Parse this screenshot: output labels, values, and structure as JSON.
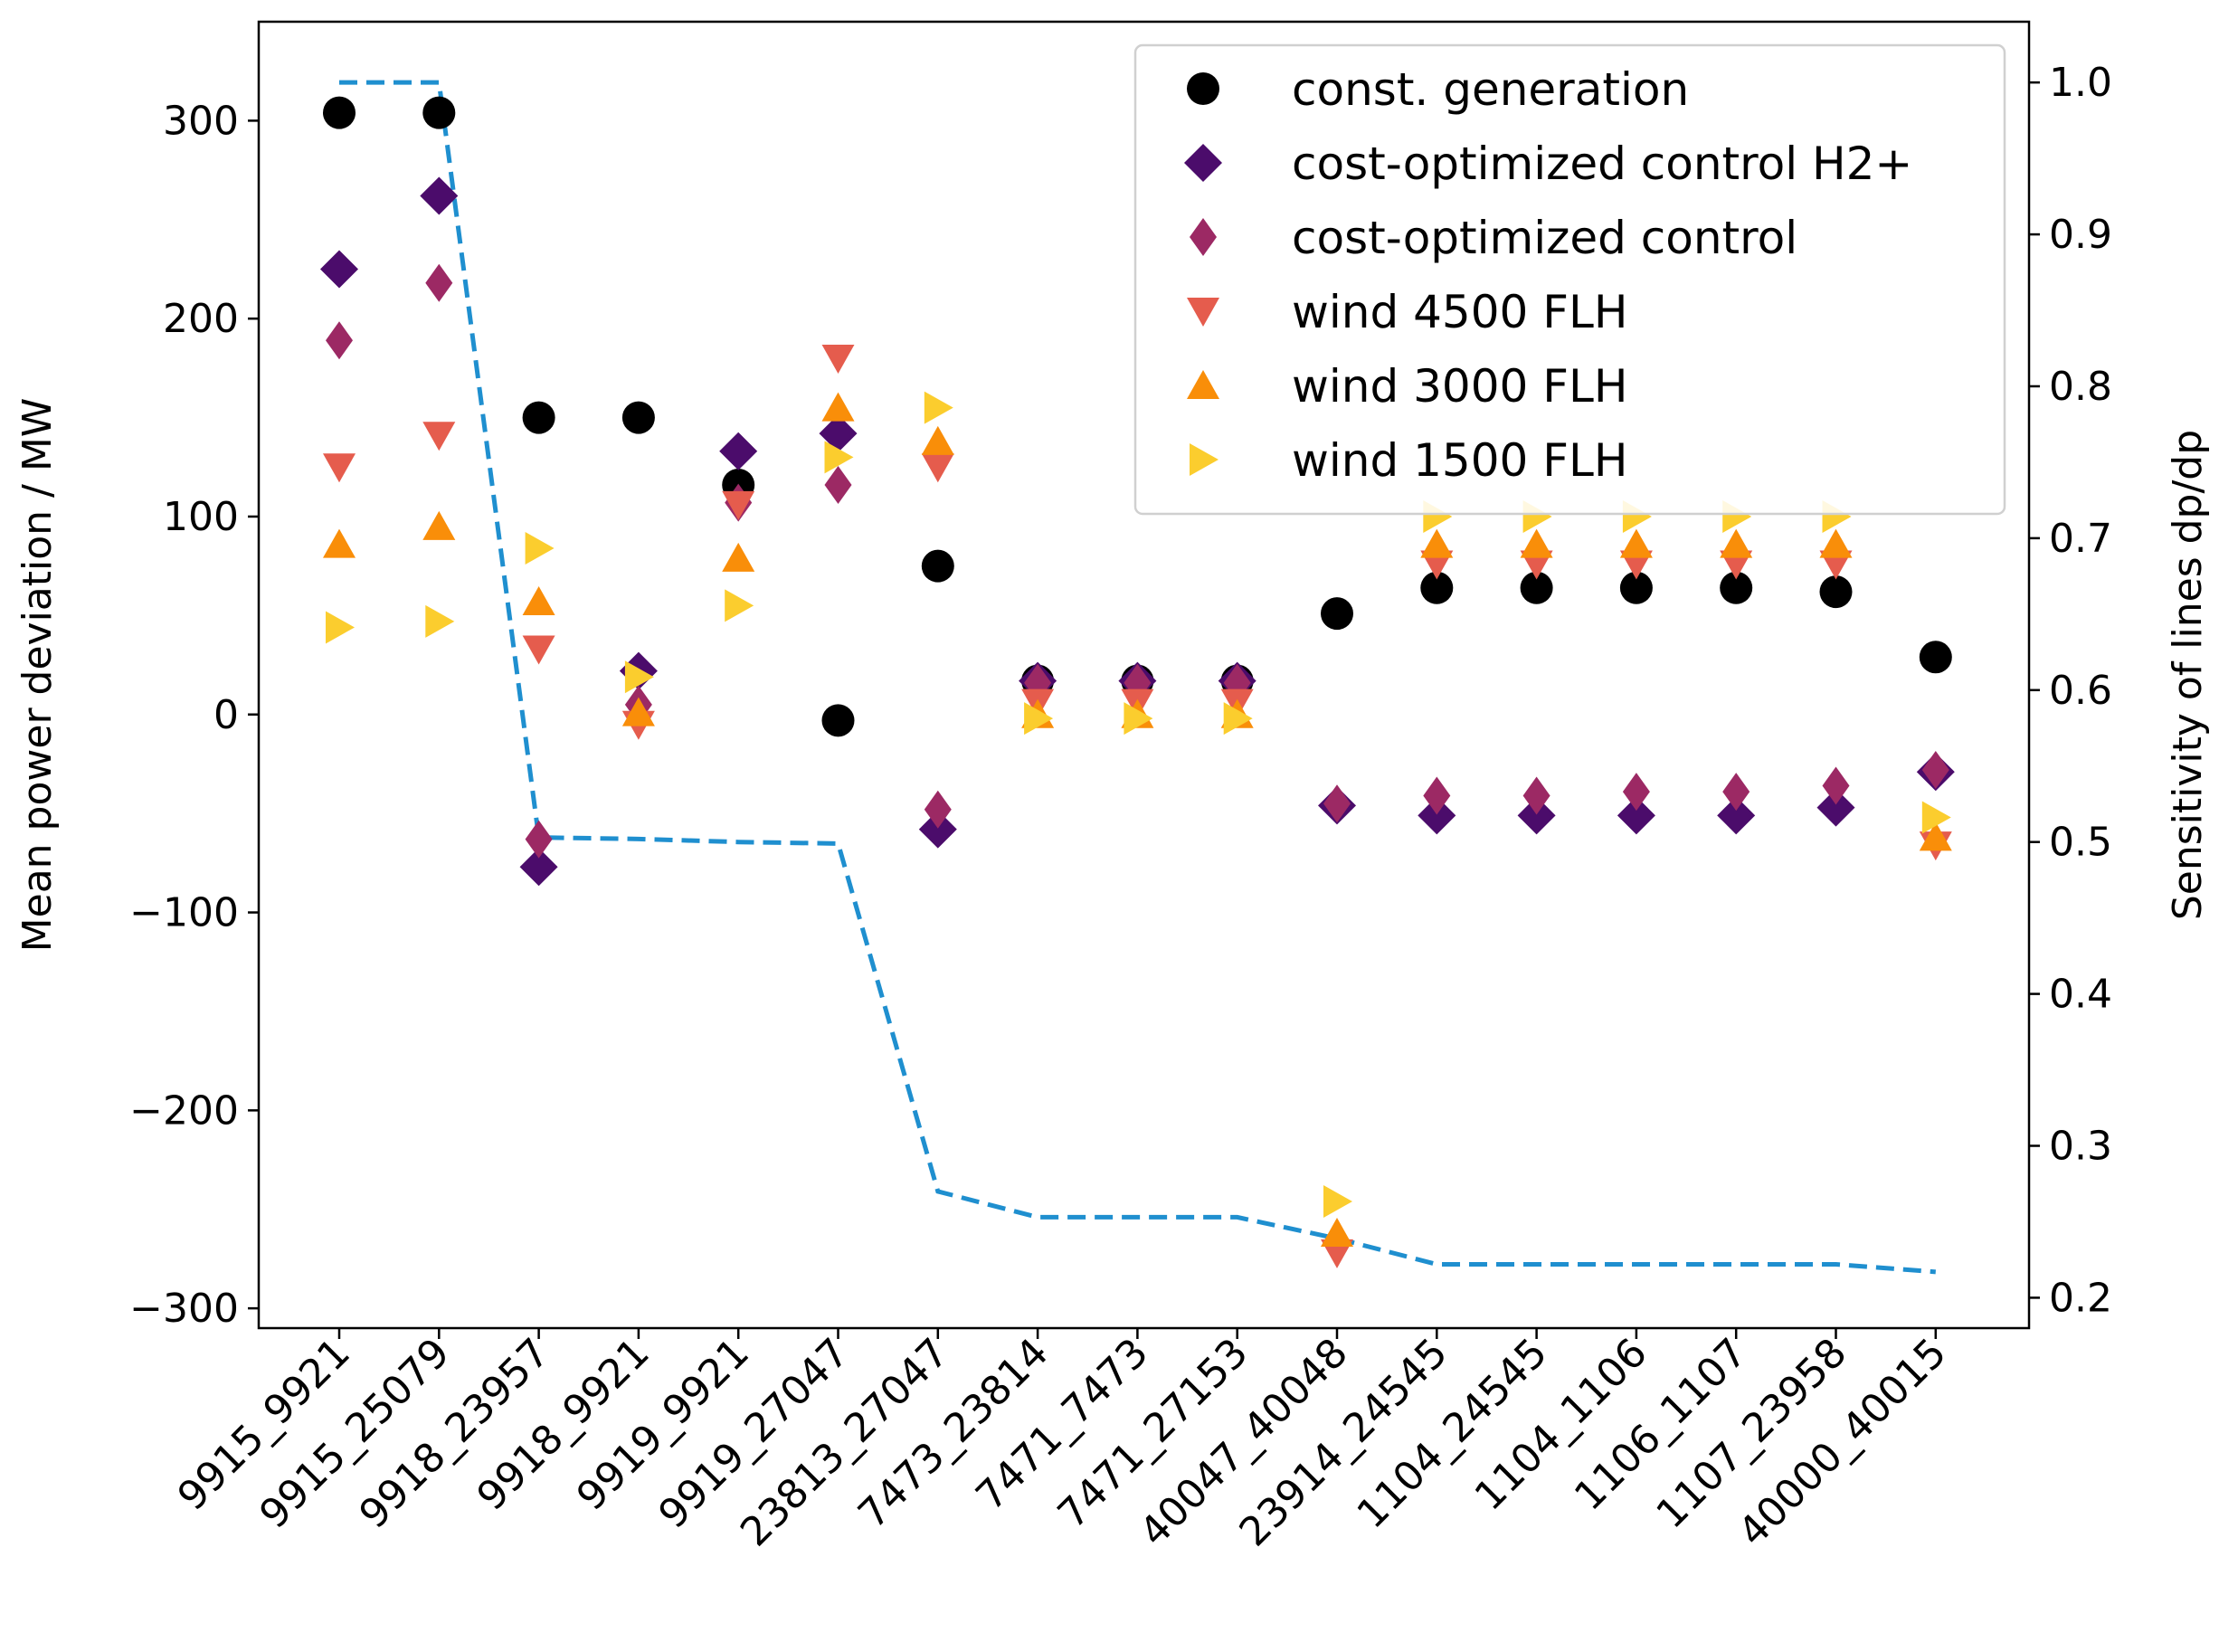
{
  "chart_data": {
    "type": "scatter",
    "title": "",
    "xlabel": "",
    "ylabel": "Mean power deviation / MW",
    "y2label": "Sensitivity of lines dp/dp",
    "ylim": [
      -310,
      350
    ],
    "y2lim": [
      0.18,
      1.04
    ],
    "yticks": [
      300,
      200,
      100,
      0,
      -100,
      -200,
      -300
    ],
    "ytick_labels": [
      "300",
      "200",
      "100",
      "0",
      "−100",
      "−200",
      "−300"
    ],
    "y2ticks": [
      1.0,
      0.9,
      0.8,
      0.7,
      0.6,
      0.5,
      0.4,
      0.3,
      0.2
    ],
    "y2tick_labels": [
      "1.0",
      "0.9",
      "0.8",
      "0.7",
      "0.6",
      "0.5",
      "0.4",
      "0.3",
      "0.2"
    ],
    "categories": [
      "9915_9921",
      "9915_25079",
      "9918_23957",
      "9918_9921",
      "9919_9921",
      "9919_27047",
      "23813_27047",
      "7473_23814",
      "7471_7473",
      "7471_27153",
      "40047_40048",
      "23914_24545",
      "1104_24545",
      "1104_1106",
      "1106_1107",
      "1107_23958",
      "40000_40015"
    ],
    "legend_position": "top-right",
    "series": [
      {
        "name": "const. generation",
        "marker": "circle",
        "color": "#000000",
        "values": [
          304,
          304,
          150,
          150,
          116,
          -3,
          75,
          17,
          17,
          17,
          51,
          64,
          64,
          64,
          64,
          62,
          29
        ]
      },
      {
        "name": "cost-optimized control H2+",
        "marker": "diamond",
        "color": "#4b0c6b",
        "values": [
          225,
          262,
          -77,
          22,
          133,
          142,
          -58,
          17,
          17,
          17,
          -46,
          -51,
          -51,
          -51,
          -51,
          -47,
          -29
        ]
      },
      {
        "name": "cost-optimized control",
        "marker": "thin_diamond",
        "color": "#9c2964",
        "values": [
          189,
          218,
          -63,
          5,
          107,
          116,
          -48,
          16,
          16,
          16,
          -45,
          -41,
          -41,
          -39,
          -39,
          -36,
          -28
        ]
      },
      {
        "name": "wind 4500 FLH",
        "marker": "triangle_down",
        "color": "#e55c4d",
        "values": [
          125,
          141,
          33,
          -5,
          106,
          180,
          125,
          6,
          6,
          6,
          -272,
          76,
          76,
          76,
          76,
          76,
          -66
        ]
      },
      {
        "name": "wind 3000 FLH",
        "marker": "triangle_up",
        "color": "#f98e09",
        "values": [
          86,
          95,
          57,
          1,
          79,
          155,
          138,
          0,
          0,
          0,
          -262,
          86,
          86,
          86,
          86,
          86,
          -62
        ]
      },
      {
        "name": "wind 1500 FLH",
        "marker": "triangle_right",
        "color": "#fbcd2e",
        "values": [
          44,
          47,
          84,
          19,
          55,
          130,
          155,
          -2,
          -2,
          -2,
          -246,
          100,
          100,
          100,
          100,
          100,
          -52
        ]
      }
    ],
    "sensitivity": {
      "name": "sensitivity",
      "style": "dashed",
      "color": "#1f8fcf",
      "x": [
        0,
        1,
        2,
        3,
        4,
        5,
        6,
        7,
        8,
        9,
        10,
        11,
        12,
        13,
        14,
        15,
        16
      ],
      "values": [
        1.0,
        1.0,
        0.503,
        0.502,
        0.5,
        0.499,
        0.27,
        0.253,
        0.253,
        0.253,
        0.239,
        0.222,
        0.222,
        0.222,
        0.222,
        0.222,
        0.217
      ]
    }
  }
}
